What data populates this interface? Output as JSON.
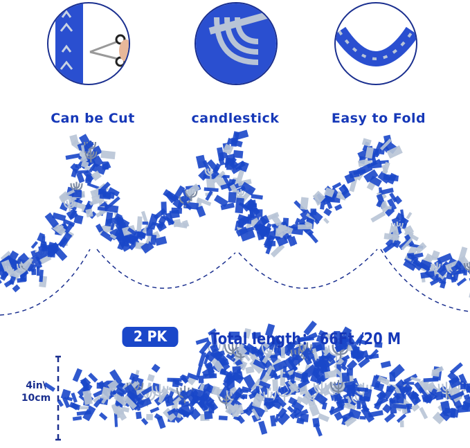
{
  "features": [
    {
      "label": "Can be Cut",
      "icon": "scissors-cutting-garland"
    },
    {
      "label": "candlestick",
      "icon": "menorah-cutout"
    },
    {
      "label": "Easy to Fold",
      "icon": "folded-garland"
    }
  ],
  "pack_badge": "2 PK",
  "total_length": "Total length： 66Ft /20 M",
  "width_label": "4in\\ 10cm",
  "colors": {
    "blue": "#1a47c9",
    "text_blue": "#1638b8",
    "silver": "#b8c4d6",
    "dark_outline": "#1a2f8f"
  }
}
